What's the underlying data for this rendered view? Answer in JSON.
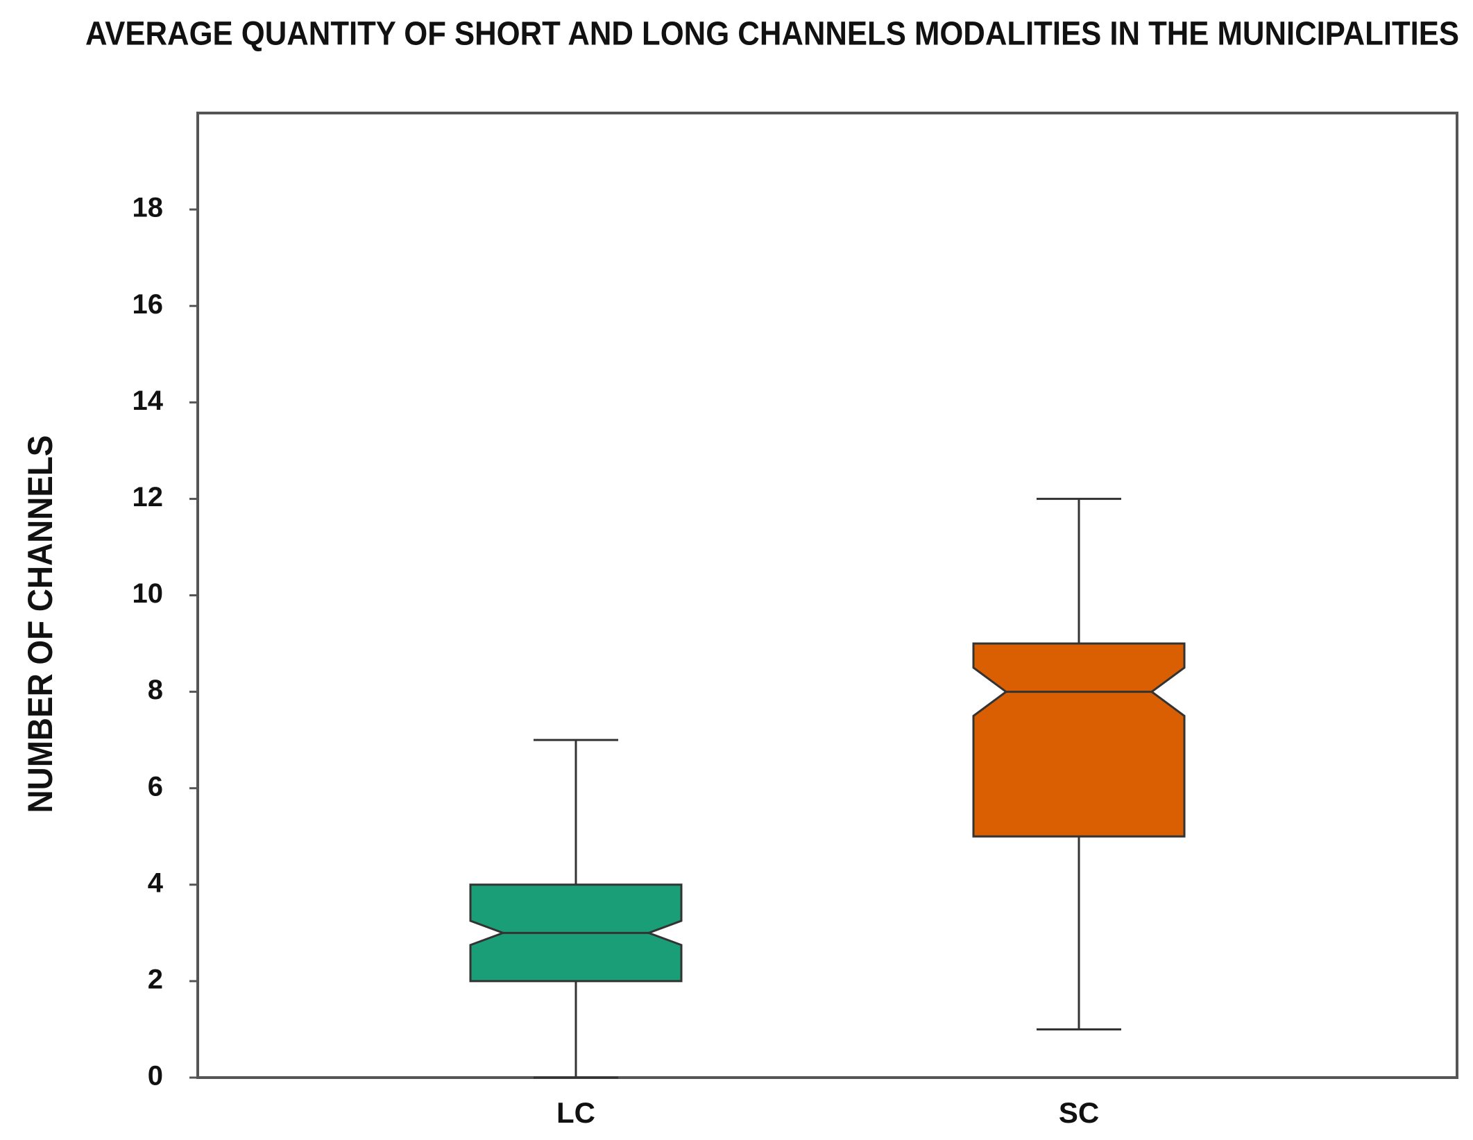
{
  "chart_data": {
    "type": "boxplot",
    "title": "AVERAGE QUANTITY OF SHORT AND LONG CHANNELS MODALITIES IN THE MUNICIPALITIES",
    "y_label": "NUMBER OF CHANNELS",
    "ylim": [
      0,
      20
    ],
    "yticks": [
      0,
      2,
      4,
      6,
      8,
      10,
      12,
      14,
      16,
      18
    ],
    "boxes": [
      {
        "label": "LC",
        "color": "#1a9e77",
        "min": 0,
        "q1": 2,
        "median": 3,
        "q3": 4,
        "max": 7,
        "notch": [
          2.75,
          3.25
        ]
      },
      {
        "label": "SC",
        "color": "#d95f02",
        "min": 1,
        "q1": 5,
        "median": 8,
        "q3": 9,
        "max": 12,
        "notch": [
          7.5,
          8.5
        ]
      }
    ]
  }
}
